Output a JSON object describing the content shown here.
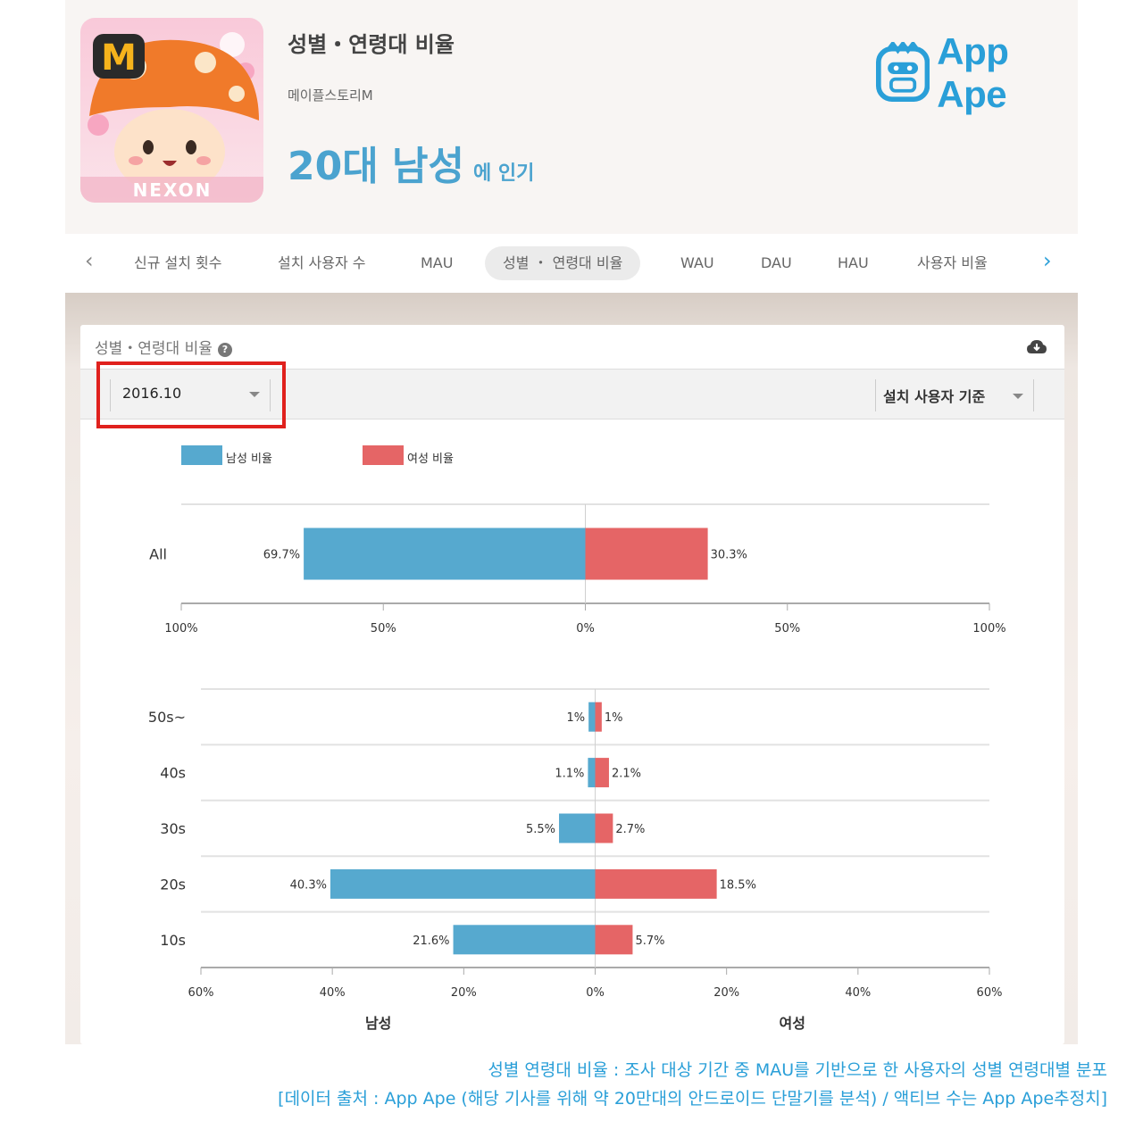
{
  "header": {
    "title": "성별・연령대 비율",
    "app_name": "메이플스토리M",
    "popular_segment": "20대 남성",
    "popular_suffix": "에 인기",
    "icon_letter": "M",
    "icon_brand": "NEXON",
    "logo_text": "App Ape"
  },
  "tabs": [
    {
      "label": "신규 설치 횟수",
      "active": false
    },
    {
      "label": "설치 사용자 수",
      "active": false
    },
    {
      "label": "MAU",
      "active": false
    },
    {
      "label": "성별 ・ 연령대 비율",
      "active": true
    },
    {
      "label": "WAU",
      "active": false
    },
    {
      "label": "DAU",
      "active": false
    },
    {
      "label": "HAU",
      "active": false
    },
    {
      "label": "사용자 비율",
      "active": false
    }
  ],
  "card": {
    "title": "성별・연령대 비율",
    "help_icon": "?",
    "date_value": "2016.10",
    "basis_value": "설치 사용자 기준"
  },
  "colors": {
    "male": "#56a9cf",
    "female": "#e56566",
    "accent": "#2a9fd8",
    "highlight": "#e0211d"
  },
  "chart_data": [
    {
      "type": "bar",
      "orientation": "horizontal-diverging",
      "legend": [
        "남성 비율",
        "여성 비율"
      ],
      "legend_position": "top-left",
      "categories": [
        "All"
      ],
      "series": [
        {
          "name": "남성 비율",
          "values": [
            69.7
          ],
          "labels": [
            "69.7%"
          ]
        },
        {
          "name": "여성 비율",
          "values": [
            30.3
          ],
          "labels": [
            "30.3%"
          ]
        }
      ],
      "xlim": [
        -100,
        100
      ],
      "xticks": [
        "100%",
        "50%",
        "0%",
        "50%",
        "100%"
      ],
      "grid": true
    },
    {
      "type": "bar",
      "orientation": "horizontal-diverging",
      "categories": [
        "50s~",
        "40s",
        "30s",
        "20s",
        "10s"
      ],
      "series": [
        {
          "name": "남성 비율",
          "values": [
            1,
            1.1,
            5.5,
            40.3,
            21.6
          ],
          "labels": [
            "1%",
            "1.1%",
            "5.5%",
            "40.3%",
            "21.6%"
          ]
        },
        {
          "name": "여성 비율",
          "values": [
            1,
            2.1,
            2.7,
            18.5,
            5.7
          ],
          "labels": [
            "1%",
            "2.1%",
            "2.7%",
            "18.5%",
            "5.7%"
          ]
        }
      ],
      "xlim": [
        -60,
        60
      ],
      "xticks": [
        "60%",
        "40%",
        "20%",
        "0%",
        "20%",
        "40%",
        "60%"
      ],
      "xlabel_left": "남성",
      "xlabel_right": "여성",
      "grid": true
    }
  ],
  "footnote": {
    "line1": "성별 연령대 비율 : 조사 대상 기간 중 MAU를 기반으로 한 사용자의 성별 연령대별 분포",
    "line2": "[데이터 출처 : App Ape (해당 기사를 위해 약 20만대의 안드로이드 단말기를 분석) / 액티브 수는 App Ape추정치]"
  }
}
